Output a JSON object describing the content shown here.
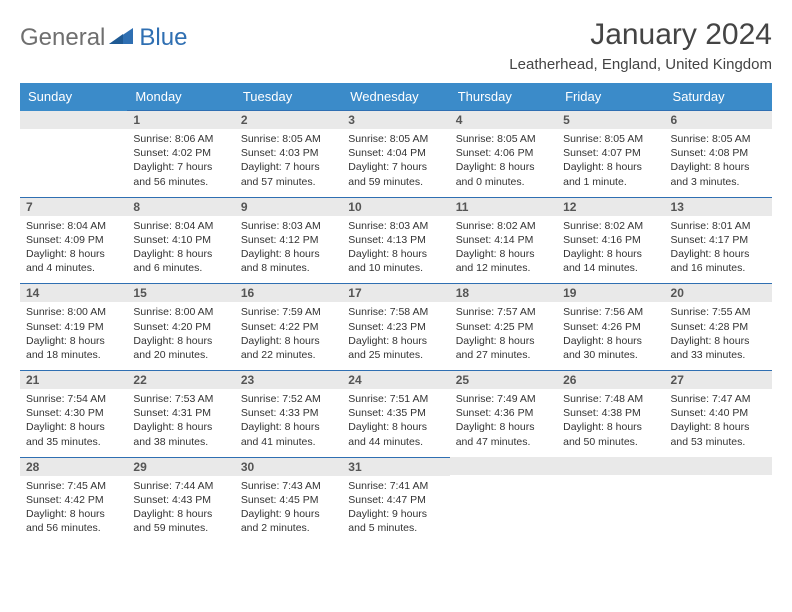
{
  "brand": {
    "part1": "General",
    "part2": "Blue"
  },
  "title": "January 2024",
  "location": "Leatherhead, England, United Kingdom",
  "colors": {
    "header_bg": "#3b8bc9",
    "header_text": "#ffffff",
    "daynum_bg": "#e9e9e9",
    "border": "#2f6fb2",
    "brand_gray": "#6f6f6f",
    "brand_blue": "#2f6fb2"
  },
  "weekdays": [
    "Sunday",
    "Monday",
    "Tuesday",
    "Wednesday",
    "Thursday",
    "Friday",
    "Saturday"
  ],
  "weeks": [
    [
      {
        "n": "",
        "sr": "",
        "ss": "",
        "dl": ""
      },
      {
        "n": "1",
        "sr": "Sunrise: 8:06 AM",
        "ss": "Sunset: 4:02 PM",
        "dl": "Daylight: 7 hours and 56 minutes."
      },
      {
        "n": "2",
        "sr": "Sunrise: 8:05 AM",
        "ss": "Sunset: 4:03 PM",
        "dl": "Daylight: 7 hours and 57 minutes."
      },
      {
        "n": "3",
        "sr": "Sunrise: 8:05 AM",
        "ss": "Sunset: 4:04 PM",
        "dl": "Daylight: 7 hours and 59 minutes."
      },
      {
        "n": "4",
        "sr": "Sunrise: 8:05 AM",
        "ss": "Sunset: 4:06 PM",
        "dl": "Daylight: 8 hours and 0 minutes."
      },
      {
        "n": "5",
        "sr": "Sunrise: 8:05 AM",
        "ss": "Sunset: 4:07 PM",
        "dl": "Daylight: 8 hours and 1 minute."
      },
      {
        "n": "6",
        "sr": "Sunrise: 8:05 AM",
        "ss": "Sunset: 4:08 PM",
        "dl": "Daylight: 8 hours and 3 minutes."
      }
    ],
    [
      {
        "n": "7",
        "sr": "Sunrise: 8:04 AM",
        "ss": "Sunset: 4:09 PM",
        "dl": "Daylight: 8 hours and 4 minutes."
      },
      {
        "n": "8",
        "sr": "Sunrise: 8:04 AM",
        "ss": "Sunset: 4:10 PM",
        "dl": "Daylight: 8 hours and 6 minutes."
      },
      {
        "n": "9",
        "sr": "Sunrise: 8:03 AM",
        "ss": "Sunset: 4:12 PM",
        "dl": "Daylight: 8 hours and 8 minutes."
      },
      {
        "n": "10",
        "sr": "Sunrise: 8:03 AM",
        "ss": "Sunset: 4:13 PM",
        "dl": "Daylight: 8 hours and 10 minutes."
      },
      {
        "n": "11",
        "sr": "Sunrise: 8:02 AM",
        "ss": "Sunset: 4:14 PM",
        "dl": "Daylight: 8 hours and 12 minutes."
      },
      {
        "n": "12",
        "sr": "Sunrise: 8:02 AM",
        "ss": "Sunset: 4:16 PM",
        "dl": "Daylight: 8 hours and 14 minutes."
      },
      {
        "n": "13",
        "sr": "Sunrise: 8:01 AM",
        "ss": "Sunset: 4:17 PM",
        "dl": "Daylight: 8 hours and 16 minutes."
      }
    ],
    [
      {
        "n": "14",
        "sr": "Sunrise: 8:00 AM",
        "ss": "Sunset: 4:19 PM",
        "dl": "Daylight: 8 hours and 18 minutes."
      },
      {
        "n": "15",
        "sr": "Sunrise: 8:00 AM",
        "ss": "Sunset: 4:20 PM",
        "dl": "Daylight: 8 hours and 20 minutes."
      },
      {
        "n": "16",
        "sr": "Sunrise: 7:59 AM",
        "ss": "Sunset: 4:22 PM",
        "dl": "Daylight: 8 hours and 22 minutes."
      },
      {
        "n": "17",
        "sr": "Sunrise: 7:58 AM",
        "ss": "Sunset: 4:23 PM",
        "dl": "Daylight: 8 hours and 25 minutes."
      },
      {
        "n": "18",
        "sr": "Sunrise: 7:57 AM",
        "ss": "Sunset: 4:25 PM",
        "dl": "Daylight: 8 hours and 27 minutes."
      },
      {
        "n": "19",
        "sr": "Sunrise: 7:56 AM",
        "ss": "Sunset: 4:26 PM",
        "dl": "Daylight: 8 hours and 30 minutes."
      },
      {
        "n": "20",
        "sr": "Sunrise: 7:55 AM",
        "ss": "Sunset: 4:28 PM",
        "dl": "Daylight: 8 hours and 33 minutes."
      }
    ],
    [
      {
        "n": "21",
        "sr": "Sunrise: 7:54 AM",
        "ss": "Sunset: 4:30 PM",
        "dl": "Daylight: 8 hours and 35 minutes."
      },
      {
        "n": "22",
        "sr": "Sunrise: 7:53 AM",
        "ss": "Sunset: 4:31 PM",
        "dl": "Daylight: 8 hours and 38 minutes."
      },
      {
        "n": "23",
        "sr": "Sunrise: 7:52 AM",
        "ss": "Sunset: 4:33 PM",
        "dl": "Daylight: 8 hours and 41 minutes."
      },
      {
        "n": "24",
        "sr": "Sunrise: 7:51 AM",
        "ss": "Sunset: 4:35 PM",
        "dl": "Daylight: 8 hours and 44 minutes."
      },
      {
        "n": "25",
        "sr": "Sunrise: 7:49 AM",
        "ss": "Sunset: 4:36 PM",
        "dl": "Daylight: 8 hours and 47 minutes."
      },
      {
        "n": "26",
        "sr": "Sunrise: 7:48 AM",
        "ss": "Sunset: 4:38 PM",
        "dl": "Daylight: 8 hours and 50 minutes."
      },
      {
        "n": "27",
        "sr": "Sunrise: 7:47 AM",
        "ss": "Sunset: 4:40 PM",
        "dl": "Daylight: 8 hours and 53 minutes."
      }
    ],
    [
      {
        "n": "28",
        "sr": "Sunrise: 7:45 AM",
        "ss": "Sunset: 4:42 PM",
        "dl": "Daylight: 8 hours and 56 minutes."
      },
      {
        "n": "29",
        "sr": "Sunrise: 7:44 AM",
        "ss": "Sunset: 4:43 PM",
        "dl": "Daylight: 8 hours and 59 minutes."
      },
      {
        "n": "30",
        "sr": "Sunrise: 7:43 AM",
        "ss": "Sunset: 4:45 PM",
        "dl": "Daylight: 9 hours and 2 minutes."
      },
      {
        "n": "31",
        "sr": "Sunrise: 7:41 AM",
        "ss": "Sunset: 4:47 PM",
        "dl": "Daylight: 9 hours and 5 minutes."
      },
      {
        "n": "",
        "sr": "",
        "ss": "",
        "dl": ""
      },
      {
        "n": "",
        "sr": "",
        "ss": "",
        "dl": ""
      },
      {
        "n": "",
        "sr": "",
        "ss": "",
        "dl": ""
      }
    ]
  ]
}
